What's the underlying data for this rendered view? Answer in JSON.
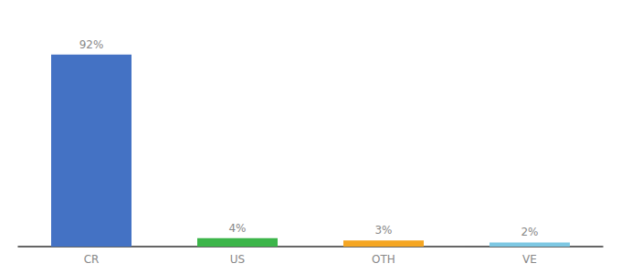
{
  "chart_data": {
    "type": "bar",
    "categories": [
      "CR",
      "US",
      "OTH",
      "VE"
    ],
    "values": [
      92,
      4,
      3,
      2
    ],
    "value_labels": [
      "92%",
      "4%",
      "3%",
      "2%"
    ],
    "colors": [
      "#4472c4",
      "#3cb54a",
      "#f5a623",
      "#7ec8e3"
    ],
    "ylim": [
      0,
      105
    ],
    "data_labels": true,
    "tick_labels": "x",
    "grid": false
  }
}
